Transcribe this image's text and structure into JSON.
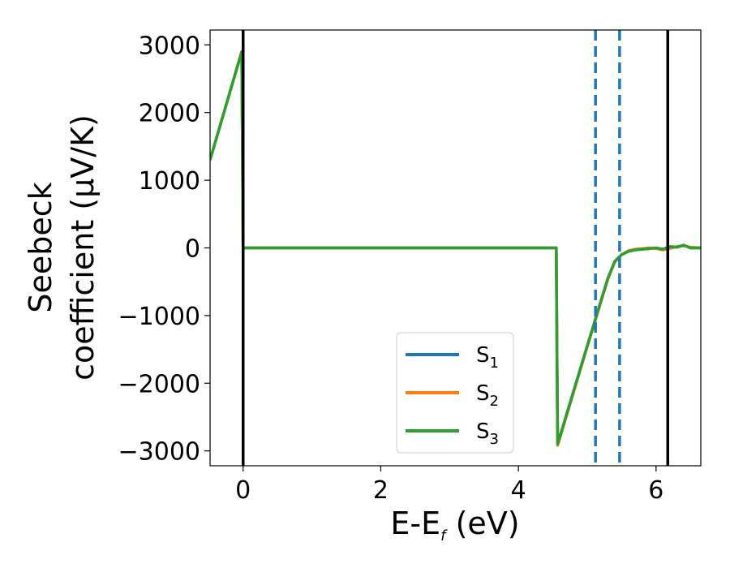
{
  "chart_data": {
    "type": "line",
    "xlabel": "E-E",
    "xlabel_sub": "f",
    "xlabel_unit": " (eV)",
    "ylabel_line1": "Seebeck",
    "ylabel_line2": "coefficient  (μV/K)",
    "xlim": [
      -0.48,
      6.65
    ],
    "ylim": [
      -3220,
      3220
    ],
    "xticks": [
      0,
      2,
      4,
      6
    ],
    "xtick_labels": [
      "0",
      "2",
      "4",
      "6"
    ],
    "yticks": [
      3000,
      2000,
      1000,
      0,
      -1000,
      -2000,
      -3000
    ],
    "ytick_labels": [
      "3000",
      "2000",
      "1000",
      "0",
      "−1000",
      "−2000",
      "−3000"
    ],
    "grid": false,
    "legend_position": "lower-center",
    "colors": {
      "S1": "#1f77b4",
      "S2": "#ff7f0e",
      "S3": "#2ca02c",
      "vline_solid": "#000000",
      "vline_dashed": "#1f77b4"
    },
    "vlines_solid": [
      0.0,
      6.17
    ],
    "vlines_dashed": [
      5.12,
      5.47
    ],
    "series": [
      {
        "name": "S",
        "name_sub": "1",
        "color": "#1f77b4",
        "x": [
          -0.48,
          -0.02,
          -0.01,
          0.0,
          1.0,
          2.0,
          3.0,
          4.0,
          4.55,
          4.56,
          4.57,
          5.0,
          5.3,
          5.4,
          5.5,
          5.6,
          5.7,
          5.8,
          5.9,
          6.0,
          6.1,
          6.2,
          6.3,
          6.4,
          6.5,
          6.65
        ],
        "y": [
          1300,
          2900,
          1500,
          0,
          0,
          0,
          0,
          0,
          0,
          -1500,
          -2900,
          -1450,
          -450,
          -200,
          -100,
          -50,
          -30,
          -20,
          -10,
          0,
          -20,
          20,
          10,
          40,
          0,
          0
        ]
      },
      {
        "name": "S",
        "name_sub": "2",
        "color": "#ff7f0e",
        "x": [
          -0.48,
          -0.02,
          -0.01,
          0.0,
          1.0,
          2.0,
          3.0,
          4.0,
          4.55,
          4.56,
          4.57,
          5.0,
          5.3,
          5.4,
          5.5,
          5.6,
          5.7,
          5.8,
          5.9,
          6.0,
          6.1,
          6.2,
          6.3,
          6.4,
          6.5,
          6.65
        ],
        "y": [
          1300,
          2900,
          1500,
          0,
          0,
          0,
          0,
          0,
          0,
          -1500,
          -2920,
          -1460,
          -460,
          -210,
          -100,
          -40,
          -20,
          -10,
          0,
          -10,
          -30,
          -10,
          20,
          30,
          10,
          0
        ]
      },
      {
        "name": "S",
        "name_sub": "3",
        "color": "#2ca02c",
        "x": [
          -0.48,
          -0.02,
          -0.01,
          0.0,
          1.0,
          2.0,
          3.0,
          4.0,
          4.55,
          4.56,
          4.57,
          5.0,
          5.3,
          5.4,
          5.5,
          5.6,
          5.7,
          5.8,
          5.9,
          6.0,
          6.1,
          6.2,
          6.3,
          6.4,
          6.5,
          6.65
        ],
        "y": [
          1300,
          2900,
          1500,
          0,
          0,
          0,
          0,
          0,
          0,
          -1500,
          -2900,
          -1450,
          -450,
          -200,
          -100,
          -50,
          -30,
          -20,
          -10,
          0,
          -20,
          20,
          10,
          40,
          0,
          0
        ]
      }
    ]
  }
}
